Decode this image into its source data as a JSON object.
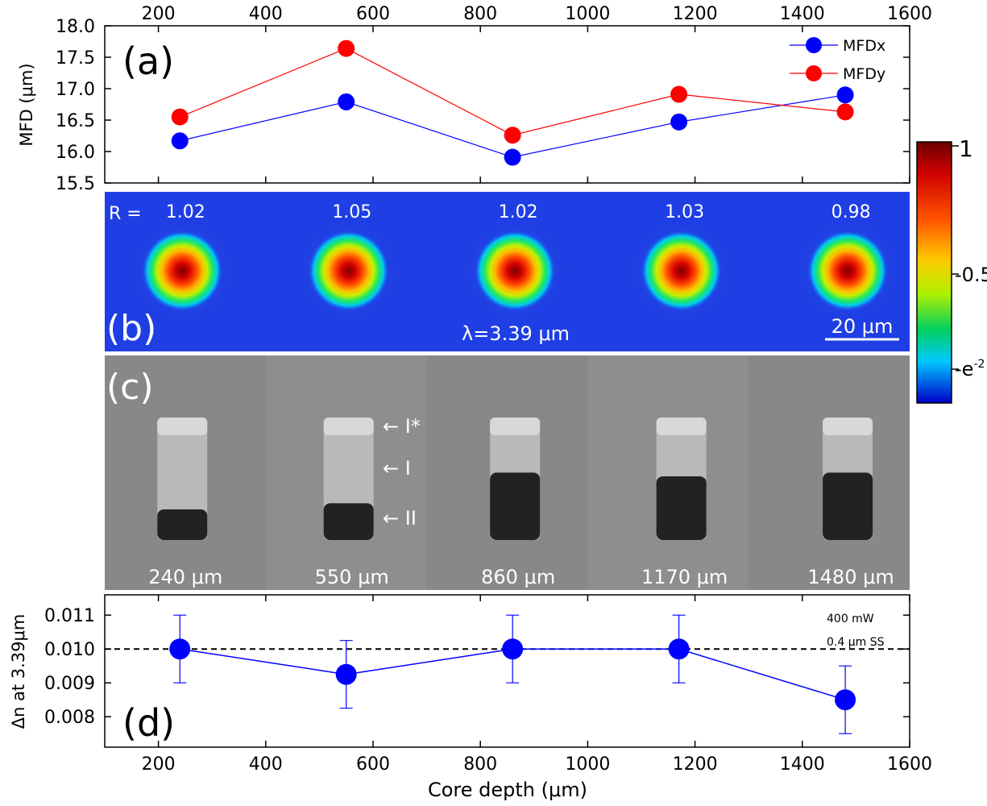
{
  "chart_data": [
    {
      "type": "line",
      "panel_label": "(a)",
      "ylabel": "MFD (μm)",
      "xlim": [
        100,
        1600
      ],
      "ylim": [
        15.5,
        18.0
      ],
      "x_ticks": [
        "200",
        "400",
        "600",
        "800",
        "1000",
        "1200",
        "1400",
        "1600"
      ],
      "y_ticks": [
        "15.5",
        "16.0",
        "16.5",
        "17.0",
        "17.5",
        "18.0"
      ],
      "x": [
        240,
        550,
        860,
        1170,
        1480
      ],
      "series": [
        {
          "name": "MFDx",
          "color": "#0000ff",
          "values": [
            16.17,
            16.79,
            15.91,
            16.47,
            16.9
          ]
        },
        {
          "name": "MFDy",
          "color": "#ff0000",
          "values": [
            16.55,
            17.64,
            16.26,
            16.91,
            16.63
          ]
        }
      ],
      "legend_position": "top-right"
    },
    {
      "type": "heatmap",
      "panel_label": "(b)",
      "r_prefix": "R =",
      "r_values": [
        "1.02",
        "1.05",
        "1.02",
        "1.03",
        "0.98"
      ],
      "wavelength": "λ=3.39 μm",
      "scale_bar": "20 μm",
      "colorbar": {
        "ticks": [
          "1",
          "0.5",
          "e"
        ],
        "e_sup": "-2"
      }
    },
    {
      "type": "table",
      "panel_label": "(c)",
      "depth_labels": [
        "240 μm",
        "550 μm",
        "860 μm",
        "1170 μm",
        "1480 μm"
      ],
      "zone_labels": [
        "I*",
        "I",
        "II"
      ]
    },
    {
      "type": "scatter",
      "panel_label": "(d)",
      "ylabel": "Δn at 3.39μm",
      "xlabel": "Core depth (μm)",
      "xlim": [
        100,
        1600
      ],
      "ylim": [
        0.0071,
        0.0116
      ],
      "x_ticks": [
        "200",
        "400",
        "600",
        "800",
        "1000",
        "1200",
        "1400",
        "1600"
      ],
      "y_ticks": [
        "0.008",
        "0.009",
        "0.010",
        "0.011"
      ],
      "x": [
        240,
        550,
        860,
        1170,
        1480
      ],
      "values": [
        0.01,
        0.00925,
        0.01,
        0.01,
        0.0085
      ],
      "errors": [
        0.001,
        0.001,
        0.001,
        0.001,
        0.001
      ],
      "reference_line": 0.01,
      "annotations": [
        "400 mW",
        "0.4 μm SS"
      ],
      "color": "#0000ff"
    }
  ]
}
